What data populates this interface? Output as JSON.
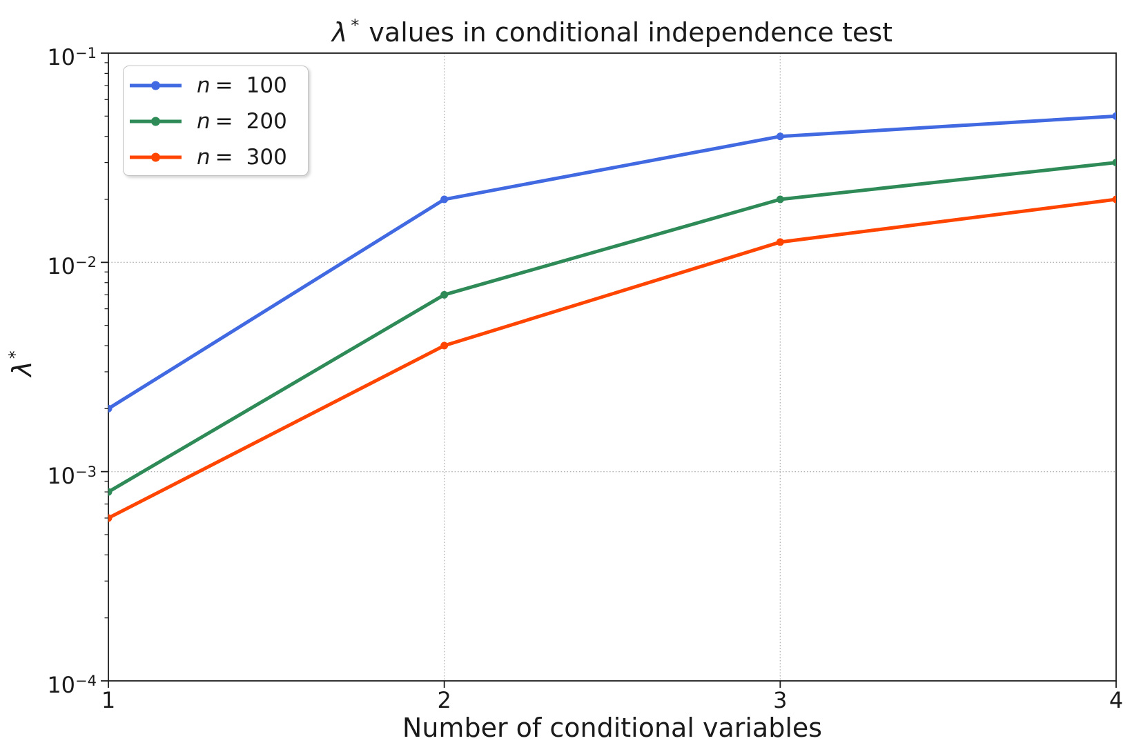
{
  "figure": {
    "title_parts": {
      "symbol": "λ",
      "sup": "*",
      "text": "values in conditional independence test"
    },
    "xlabel": "Number of conditional variables",
    "ylabel_parts": {
      "symbol": "λ",
      "sup": "*"
    }
  },
  "chart_data": {
    "type": "line",
    "title": "λ* values in conditional independence test",
    "xlabel": "Number of conditional variables",
    "ylabel": "λ*",
    "yscale": "log",
    "xlim": [
      1,
      4
    ],
    "ylim": [
      0.0001,
      0.1
    ],
    "grid": "major ticks, dotted gray, both axes",
    "legend_position": "upper left",
    "x": [
      1,
      2,
      3,
      4
    ],
    "series": [
      {
        "name": "n = 100",
        "legend_var": "n",
        "legend_eq": "=",
        "legend_val": "100",
        "color": "#4169e1",
        "values": [
          0.002,
          0.02,
          0.04,
          0.05
        ]
      },
      {
        "name": "n = 200",
        "legend_var": "n",
        "legend_eq": "=",
        "legend_val": "200",
        "color": "#2e8b57",
        "values": [
          0.0008,
          0.007,
          0.02,
          0.03
        ]
      },
      {
        "name": "n = 300",
        "legend_var": "n",
        "legend_eq": "=",
        "legend_val": "300",
        "color": "#ff4500",
        "values": [
          0.0006,
          0.004,
          0.0125,
          0.02
        ]
      }
    ],
    "xticks": {
      "values": [
        1,
        2,
        3,
        4
      ],
      "labels": [
        "1",
        "2",
        "3",
        "4"
      ]
    },
    "yticks": {
      "values": [
        0.1,
        0.01,
        0.001,
        0.0001
      ],
      "labels": [
        {
          "base": "10",
          "exp": "−1"
        },
        {
          "base": "10",
          "exp": "−2"
        },
        {
          "base": "10",
          "exp": "−3"
        },
        {
          "base": "10",
          "exp": "−4"
        }
      ]
    },
    "colors": {
      "grid": "#b3b3b3",
      "spine": "#1c1c1c",
      "text": "#1a1a1a"
    },
    "marker": "circle"
  }
}
